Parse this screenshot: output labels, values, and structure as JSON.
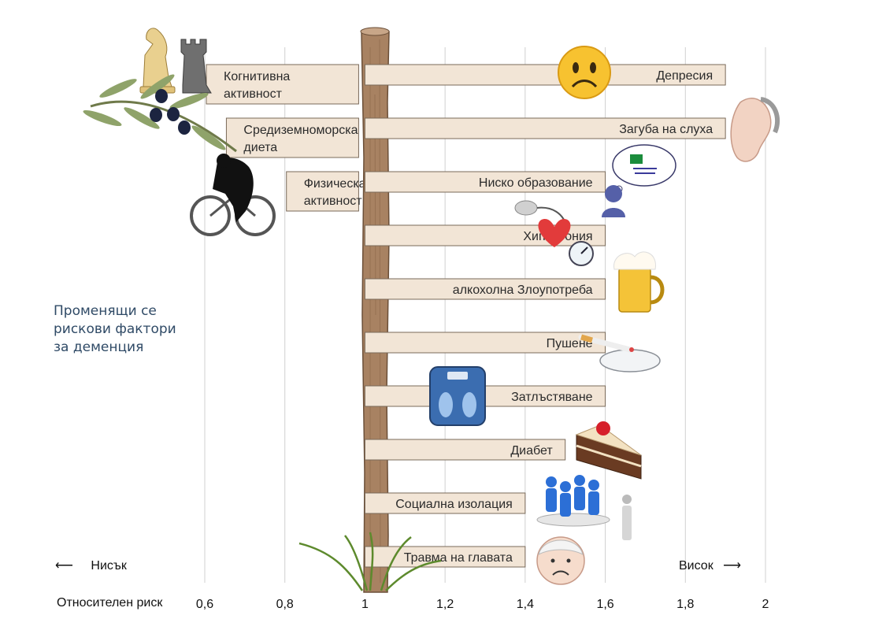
{
  "chart_data": {
    "type": "bar",
    "title": "",
    "xlabel": "Относителен риск",
    "ylabel": "",
    "baseline": 1,
    "xlim": [
      0.6,
      2
    ],
    "x_ticks": [
      "0,6",
      "0,8",
      "1",
      "1,2",
      "1,4",
      "1,6",
      "1,8",
      "2"
    ],
    "x_tick_values": [
      0.6,
      0.8,
      1,
      1.2,
      1.4,
      1.6,
      1.8,
      2
    ],
    "grid": true,
    "low_label": "Нисък",
    "high_label": "Висок",
    "side_note": [
      "Променящи се",
      "рискови фактори",
      "за деменция"
    ],
    "protective": [
      {
        "label_lines": [
          "Когнитивна",
          "активност"
        ],
        "value": 0.6,
        "icon": "chess-icon"
      },
      {
        "label_lines": [
          "Средиземноморска",
          "диета"
        ],
        "value": 0.65,
        "icon": "olive-branch-icon"
      },
      {
        "label_lines": [
          "Физическа",
          "активност"
        ],
        "value": 0.8,
        "icon": "cyclist-icon"
      }
    ],
    "risk": [
      {
        "label": "Депресия",
        "value": 1.9,
        "icon": "sad-face-icon"
      },
      {
        "label": "Загуба на слуха",
        "value": 1.9,
        "icon": "ear-icon"
      },
      {
        "label": "Ниско образование",
        "value": 1.6,
        "icon": "education-thought-icon"
      },
      {
        "label": "Хипертония",
        "value": 1.6,
        "icon": "blood-pressure-icon"
      },
      {
        "label": "алкохолна Злоупотреба",
        "value": 1.6,
        "icon": "beer-mug-icon"
      },
      {
        "label": "Пушене",
        "value": 1.6,
        "icon": "cigarette-icon"
      },
      {
        "label": "Затлъстяване",
        "value": 1.6,
        "icon": "scale-icon"
      },
      {
        "label": "Диабет",
        "value": 1.5,
        "icon": "cake-icon"
      },
      {
        "label": "Социална изолация",
        "value": 1.4,
        "icon": "isolation-icon"
      },
      {
        "label": "Травма на главата",
        "value": 1.4,
        "icon": "head-injury-icon"
      }
    ]
  },
  "colors": {
    "sign_fill": "#f2e5d6",
    "sign_stroke": "#7a6a5a",
    "post": "#a88262",
    "grid": "#d0d0d0",
    "note": "#2f4a66"
  }
}
